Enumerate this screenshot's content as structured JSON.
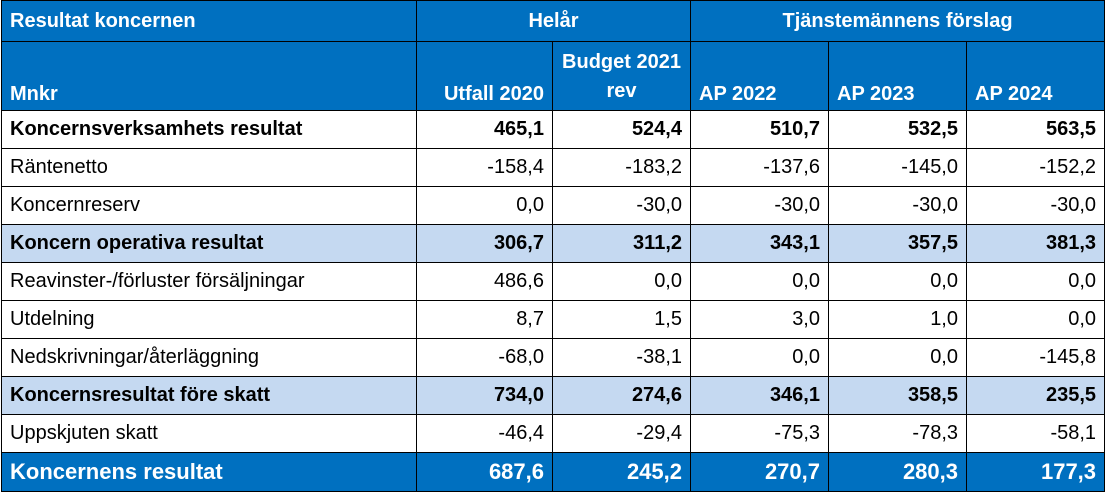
{
  "header": {
    "corner_label": "Resultat koncernen",
    "group_helar": "Helår",
    "group_forslag": "Tjänstemännens förslag",
    "unit_label": "Mnkr",
    "columns": [
      "Utfall 2020",
      "Budget 2021 rev",
      "AP 2022",
      "AP 2023",
      "AP 2024"
    ]
  },
  "rows": [
    {
      "label": "Koncernsverksamhets resultat",
      "values": [
        "465,1",
        "524,4",
        "510,7",
        "532,5",
        "563,5"
      ]
    },
    {
      "label": "Räntenetto",
      "values": [
        "-158,4",
        "-183,2",
        "-137,6",
        "-145,0",
        "-152,2"
      ]
    },
    {
      "label": "Koncernreserv",
      "values": [
        "0,0",
        "-30,0",
        "-30,0",
        "-30,0",
        "-30,0"
      ]
    },
    {
      "label": "Koncern operativa resultat",
      "values": [
        "306,7",
        "311,2",
        "343,1",
        "357,5",
        "381,3"
      ]
    },
    {
      "label": "Reavinster-/förluster försäljningar",
      "values": [
        "486,6",
        "0,0",
        "0,0",
        "0,0",
        "0,0"
      ]
    },
    {
      "label": "Utdelning",
      "values": [
        "8,7",
        "1,5",
        "3,0",
        "1,0",
        "0,0"
      ]
    },
    {
      "label": "Nedskrivningar/återläggning",
      "values": [
        "-68,0",
        "-38,1",
        "0,0",
        "0,0",
        "-145,8"
      ]
    },
    {
      "label": "Koncernsresultat före skatt",
      "values": [
        "734,0",
        "274,6",
        "346,1",
        "358,5",
        "235,5"
      ]
    },
    {
      "label": "Uppskjuten skatt",
      "values": [
        "-46,4",
        "-29,4",
        "-75,3",
        "-78,3",
        "-58,1"
      ]
    },
    {
      "label": "Koncernens resultat",
      "values": [
        "687,6",
        "245,2",
        "270,7",
        "280,3",
        "177,3"
      ]
    }
  ]
}
